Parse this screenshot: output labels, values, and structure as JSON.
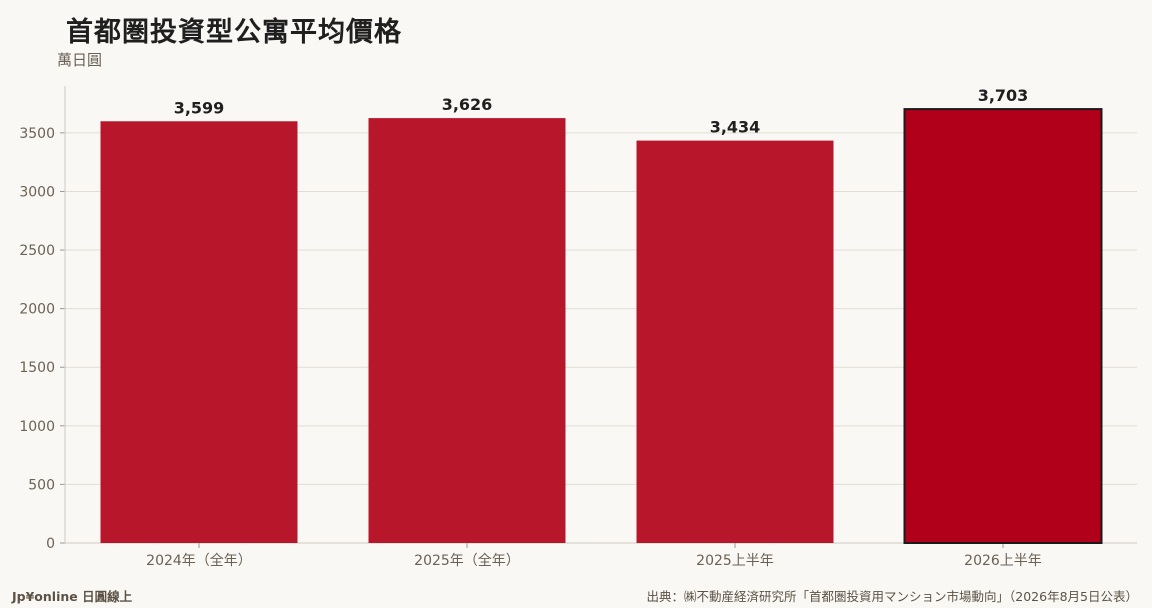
{
  "chart_data": {
    "type": "bar",
    "title": "首都圏投資型公寓平均價格",
    "unit_label": "萬日圓",
    "categories": [
      "2024年（全年）",
      "2025年（全年）",
      "2025上半年",
      "2026上半年"
    ],
    "values": [
      3599,
      3626,
      3434,
      3703
    ],
    "value_labels": [
      "3,599",
      "3,626",
      "3,434",
      "3,703"
    ],
    "ylim": [
      0,
      3900
    ],
    "yticks": [
      0,
      500,
      1000,
      1500,
      2000,
      2500,
      3000,
      3500
    ],
    "grid": true,
    "highlight_index": 3,
    "colors": {
      "bar": "#b8162b",
      "highlight": "#b0001a",
      "highlight_border": "#1a1a1a",
      "grid": "#e2ddd4",
      "axis_text": "#6b6255",
      "value_text": "#1f1f1f"
    }
  },
  "footer": {
    "brand": "Jp¥online 日圓線上",
    "source": "出典：㈱不動産経済研究所「首都圏投資用マンション市場動向」（2026年8月5日公表）"
  }
}
